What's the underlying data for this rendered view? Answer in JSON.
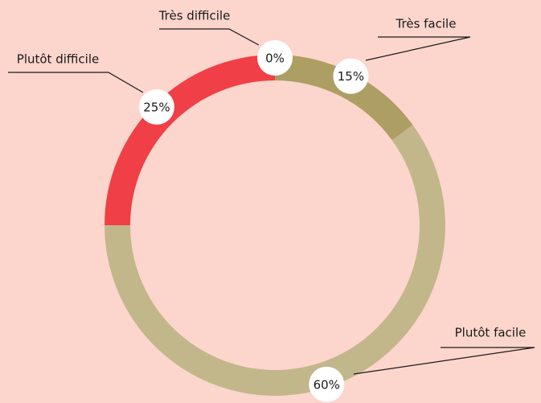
{
  "chart_data": {
    "type": "donut",
    "categories": [
      "Très facile",
      "Plutôt facile",
      "Plutôt difficile",
      "Très difficile"
    ],
    "values": [
      15,
      60,
      25,
      0
    ],
    "value_labels": [
      "15%",
      "60%",
      "25%",
      "0%"
    ],
    "colors": [
      "#ad9e64",
      "#c2b78a",
      "#f03f46",
      "#e8a0a0"
    ]
  }
}
